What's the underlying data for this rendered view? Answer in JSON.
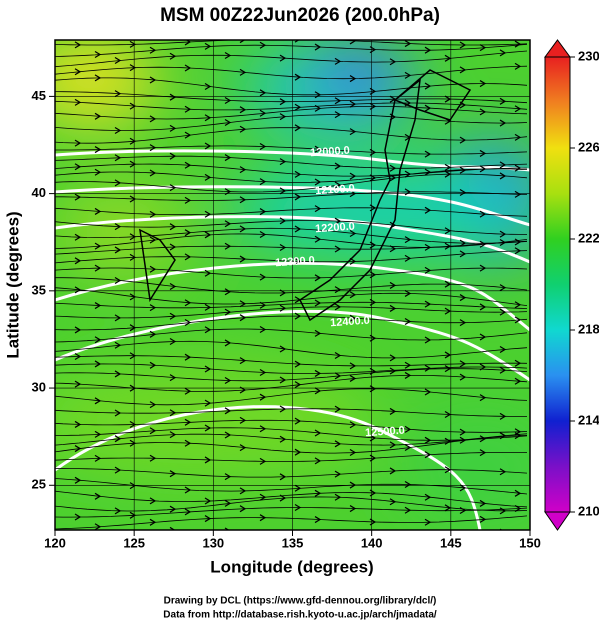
{
  "title": "MSM 00Z22Jun2026 (200.0hPa)",
  "x_axis": {
    "label": "Longitude (degrees)",
    "range": [
      120,
      150
    ],
    "ticks": [
      120,
      125,
      130,
      135,
      140,
      145,
      150
    ]
  },
  "y_axis": {
    "label": "Latitude  (degrees)",
    "range": [
      22.7,
      47.9
    ],
    "ticks": [
      25,
      30,
      35,
      40,
      45
    ]
  },
  "colorbar": {
    "range": [
      210,
      230
    ],
    "ticks": [
      210,
      214,
      218,
      222,
      226,
      230
    ]
  },
  "contours": [
    {
      "value": 12000,
      "label": "12000.0"
    },
    {
      "value": 12100,
      "label": "12100.0"
    },
    {
      "value": 12200,
      "label": "12200.0"
    },
    {
      "value": 12300,
      "label": "12300.0"
    },
    {
      "value": 12400,
      "label": "12400.0"
    },
    {
      "value": 12500,
      "label": "12500.0"
    }
  ],
  "credits": [
    "Drawing by DCL (https://www.gfd-dennou.org/library/dcl/)",
    "Data from http://database.rish.kyoto-u.ac.jp/arch/jmadata/"
  ]
}
